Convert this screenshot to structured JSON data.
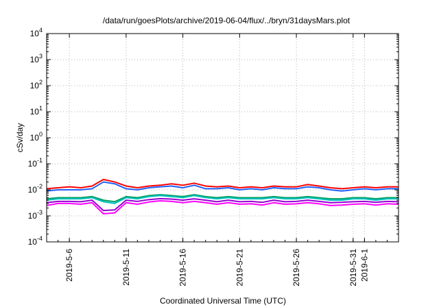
{
  "chart_data": {
    "type": "line",
    "title": "/data/run/goesPlots/archive/2019-06-04/flux/../bryn/31daysMars.plot",
    "xlabel": "Coordinated Universal Time (UTC)",
    "ylabel": "cSv/day",
    "y_scale": "log",
    "ylim": [
      0.0001,
      10000
    ],
    "xlim": [
      "2019-05-04",
      "2019-06-04"
    ],
    "grid": true,
    "x_ticks": [
      "2019-5-6",
      "2019-5-11",
      "2019-5-16",
      "2019-5-21",
      "2019-5-26",
      "2019-5-31",
      "2019-6-1"
    ],
    "y_ticks": [
      {
        "value": 0.0001,
        "mantissa": "10",
        "exponent": "-4"
      },
      {
        "value": 0.001,
        "mantissa": "10",
        "exponent": "-3"
      },
      {
        "value": 0.01,
        "mantissa": "10",
        "exponent": "-2"
      },
      {
        "value": 0.1,
        "mantissa": "10",
        "exponent": "-1"
      },
      {
        "value": 1,
        "mantissa": "10",
        "exponent": "0"
      },
      {
        "value": 10,
        "mantissa": "10",
        "exponent": "1"
      },
      {
        "value": 100,
        "mantissa": "10",
        "exponent": "2"
      },
      {
        "value": 1000,
        "mantissa": "10",
        "exponent": "3"
      },
      {
        "value": 10000,
        "mantissa": "10",
        "exponent": "4"
      }
    ],
    "x": [
      "2019-05-04",
      "2019-05-05",
      "2019-05-06",
      "2019-05-07",
      "2019-05-08",
      "2019-05-09",
      "2019-05-10",
      "2019-05-11",
      "2019-05-12",
      "2019-05-13",
      "2019-05-14",
      "2019-05-15",
      "2019-05-16",
      "2019-05-17",
      "2019-05-18",
      "2019-05-19",
      "2019-05-20",
      "2019-05-21",
      "2019-05-22",
      "2019-05-23",
      "2019-05-24",
      "2019-05-25",
      "2019-05-26",
      "2019-05-27",
      "2019-05-28",
      "2019-05-29",
      "2019-05-30",
      "2019-05-31",
      "2019-06-01",
      "2019-06-02",
      "2019-06-03",
      "2019-06-04"
    ],
    "series": [
      {
        "color": "#ff0000",
        "values": [
          0.011,
          0.012,
          0.013,
          0.012,
          0.014,
          0.025,
          0.02,
          0.014,
          0.012,
          0.014,
          0.015,
          0.017,
          0.015,
          0.018,
          0.014,
          0.013,
          0.014,
          0.012,
          0.013,
          0.012,
          0.014,
          0.013,
          0.013,
          0.016,
          0.014,
          0.012,
          0.011,
          0.012,
          0.013,
          0.012,
          0.013,
          0.013
        ]
      },
      {
        "color": "#2060ff",
        "values": [
          0.009,
          0.01,
          0.01,
          0.01,
          0.011,
          0.02,
          0.017,
          0.011,
          0.01,
          0.012,
          0.013,
          0.014,
          0.012,
          0.015,
          0.011,
          0.011,
          0.012,
          0.01,
          0.011,
          0.01,
          0.012,
          0.011,
          0.011,
          0.013,
          0.012,
          0.01,
          0.009,
          0.01,
          0.011,
          0.01,
          0.011,
          0.011
        ]
      },
      {
        "color": "#00a060",
        "values": [
          0.0045,
          0.005,
          0.005,
          0.005,
          0.0055,
          0.004,
          0.0035,
          0.0055,
          0.005,
          0.006,
          0.0065,
          0.006,
          0.0055,
          0.0065,
          0.0055,
          0.005,
          0.0055,
          0.005,
          0.005,
          0.005,
          0.0055,
          0.005,
          0.005,
          0.0055,
          0.005,
          0.0045,
          0.0045,
          0.005,
          0.005,
          0.0045,
          0.005,
          0.005
        ]
      },
      {
        "color": "#00c0c0",
        "values": [
          0.004,
          0.0045,
          0.0045,
          0.0045,
          0.005,
          0.0035,
          0.003,
          0.005,
          0.0045,
          0.0055,
          0.006,
          0.0055,
          0.005,
          0.006,
          0.005,
          0.0045,
          0.005,
          0.0045,
          0.0045,
          0.0045,
          0.005,
          0.0045,
          0.0045,
          0.005,
          0.0045,
          0.004,
          0.004,
          0.0045,
          0.0045,
          0.004,
          0.0045,
          0.0045
        ]
      },
      {
        "color": "#9400d3",
        "values": [
          0.0032,
          0.0036,
          0.0036,
          0.0035,
          0.004,
          0.0016,
          0.0017,
          0.004,
          0.0036,
          0.0042,
          0.0046,
          0.0044,
          0.004,
          0.0045,
          0.004,
          0.0035,
          0.004,
          0.0035,
          0.0036,
          0.0033,
          0.004,
          0.0035,
          0.0036,
          0.004,
          0.0036,
          0.0032,
          0.0033,
          0.0035,
          0.0036,
          0.0033,
          0.0036,
          0.0035
        ]
      },
      {
        "color": "#ff00ff",
        "values": [
          0.0025,
          0.003,
          0.003,
          0.0028,
          0.0032,
          0.0012,
          0.0013,
          0.0032,
          0.0028,
          0.0034,
          0.0038,
          0.0036,
          0.0032,
          0.0036,
          0.0032,
          0.0028,
          0.0032,
          0.0028,
          0.0029,
          0.0026,
          0.0032,
          0.0028,
          0.0029,
          0.0032,
          0.0029,
          0.0025,
          0.0026,
          0.0028,
          0.0029,
          0.0026,
          0.0029,
          0.0028
        ]
      }
    ]
  }
}
